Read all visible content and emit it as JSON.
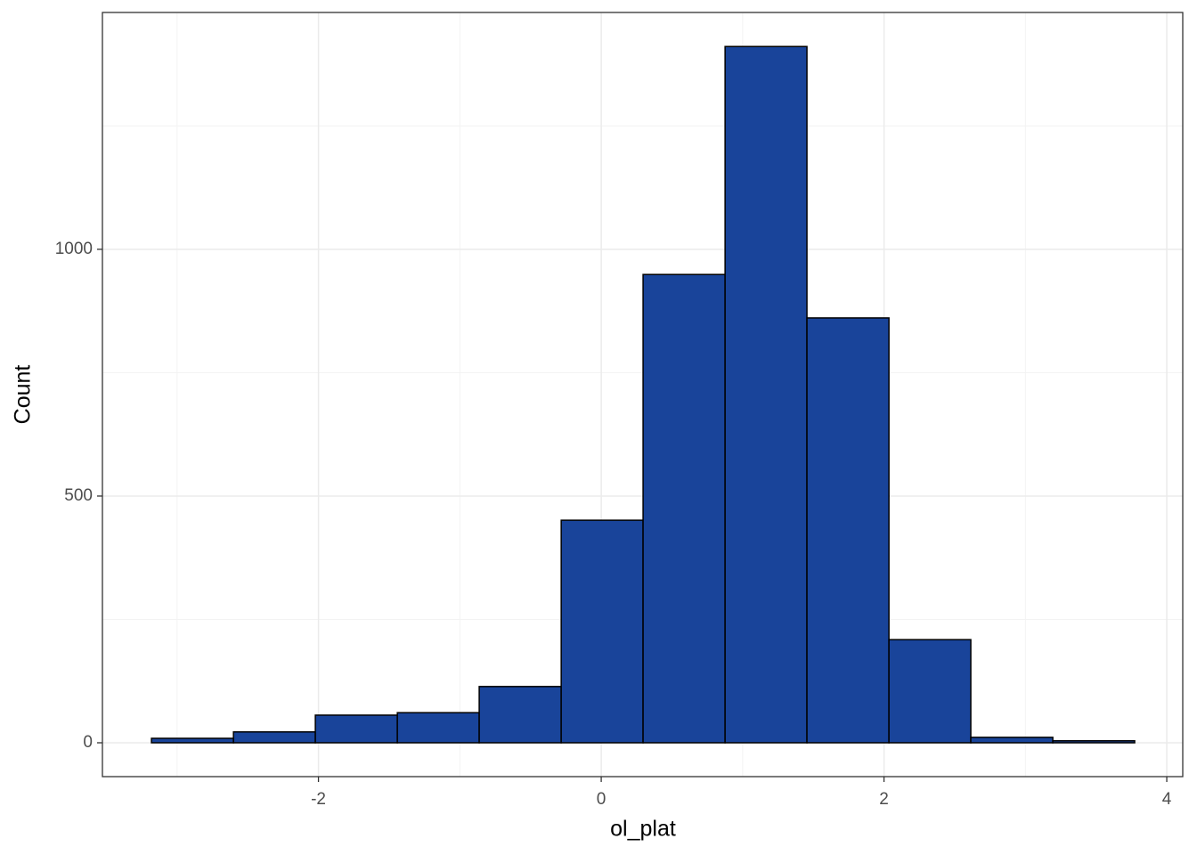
{
  "chart_data": {
    "type": "histogram",
    "x_label": "ol_plat",
    "y_label": "Count",
    "bins": [
      -3.181,
      -2.601,
      -2.022,
      -1.442,
      -0.863,
      -0.283,
      0.296,
      0.876,
      1.455,
      2.035,
      2.614,
      3.194,
      3.773
    ],
    "values": [
      9,
      22,
      56,
      61,
      114,
      451,
      949,
      1411,
      861,
      209,
      11,
      4
    ],
    "color": "#19449a",
    "xlim": [
      -3.528,
      4.113
    ],
    "ylim": [
      -68.6,
      1480
    ],
    "xticks": [
      -2,
      0,
      2,
      4
    ],
    "yticks": [
      0,
      500,
      1000
    ],
    "xminor": [
      -3,
      -1,
      1,
      3
    ],
    "yminor": [
      250,
      750,
      1250
    ],
    "grid": true
  }
}
